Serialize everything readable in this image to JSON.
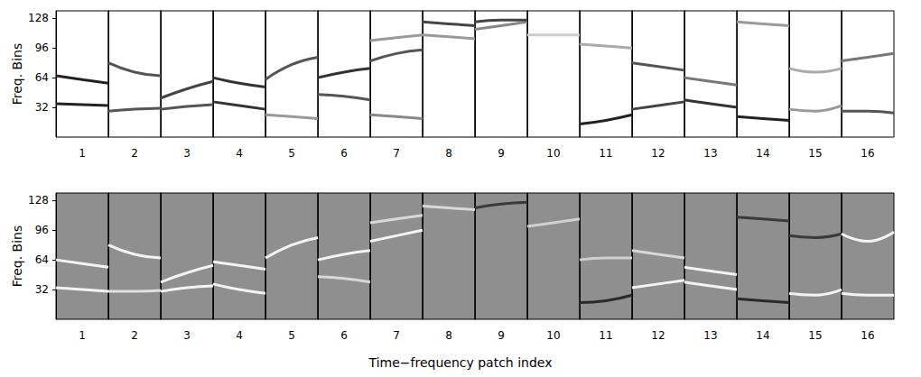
{
  "chart_data": {
    "type": "line",
    "x_label": "Time−frequency patch index",
    "y_label": "Freq. Bins",
    "categories": [
      "1",
      "2",
      "3",
      "4",
      "5",
      "6",
      "7",
      "8",
      "9",
      "10",
      "11",
      "12",
      "13",
      "14",
      "15",
      "16"
    ],
    "x": [
      0,
      0.5,
      1
    ],
    "xlim": [
      0,
      1
    ],
    "ylim": [
      0,
      136
    ],
    "yticks": [
      32,
      64,
      96,
      128
    ],
    "tick_labels": "y",
    "grid": false,
    "rows": [
      {
        "color": "#ffffff",
        "patches": [
          [
            {
              "color": "#222222",
              "values": [
                66,
                62,
                58
              ]
            },
            {
              "color": "#222222",
              "values": [
                36,
                35,
                34
              ]
            }
          ],
          [
            {
              "color": "#555555",
              "values": [
                80,
                70,
                66
              ]
            },
            {
              "color": "#555555",
              "values": [
                28,
                30,
                31
              ]
            }
          ],
          [
            {
              "color": "#444444",
              "values": [
                42,
                52,
                60
              ]
            },
            {
              "color": "#555555",
              "values": [
                30,
                33,
                35
              ]
            }
          ],
          [
            {
              "color": "#333333",
              "values": [
                64,
                58,
                54
              ]
            },
            {
              "color": "#333333",
              "values": [
                38,
                34,
                30
              ]
            }
          ],
          [
            {
              "color": "#555555",
              "values": [
                62,
                78,
                86
              ]
            },
            {
              "color": "#999999",
              "values": [
                24,
                22,
                20
              ]
            }
          ],
          [
            {
              "color": "#333333",
              "values": [
                64,
                70,
                74
              ]
            },
            {
              "color": "#555555",
              "values": [
                46,
                44,
                40
              ]
            }
          ],
          [
            {
              "color": "#555555",
              "values": [
                82,
                90,
                94
              ]
            },
            {
              "color": "#999999",
              "values": [
                104,
                107,
                110
              ]
            },
            {
              "color": "#888888",
              "values": [
                24,
                22,
                20
              ]
            }
          ],
          [
            {
              "color": "#444444",
              "values": [
                124,
                122,
                120
              ]
            },
            {
              "color": "#999999",
              "values": [
                110,
                108,
                106
              ]
            }
          ],
          [
            {
              "color": "#888888",
              "values": [
                116,
                120,
                124
              ]
            },
            {
              "color": "#444444",
              "values": [
                124,
                126,
                126
              ]
            }
          ],
          [
            {
              "color": "#cccccc",
              "values": [
                110,
                110,
                110
              ]
            }
          ],
          [
            {
              "color": "#aaaaaa",
              "values": [
                100,
                98,
                96
              ]
            },
            {
              "color": "#222222",
              "values": [
                14,
                18,
                24
              ]
            }
          ],
          [
            {
              "color": "#555555",
              "values": [
                80,
                76,
                72
              ]
            },
            {
              "color": "#444444",
              "values": [
                30,
                34,
                38
              ]
            }
          ],
          [
            {
              "color": "#777777",
              "values": [
                64,
                60,
                56
              ]
            },
            {
              "color": "#333333",
              "values": [
                40,
                36,
                32
              ]
            }
          ],
          [
            {
              "color": "#222222",
              "values": [
                22,
                20,
                18
              ]
            },
            {
              "color": "#999999",
              "values": [
                124,
                122,
                120
              ]
            }
          ],
          [
            {
              "color": "#aaaaaa",
              "values": [
                74,
                70,
                74
              ]
            },
            {
              "color": "#999999",
              "values": [
                30,
                28,
                34
              ]
            }
          ],
          [
            {
              "color": "#777777",
              "values": [
                82,
                86,
                90
              ]
            },
            {
              "color": "#555555",
              "values": [
                28,
                28,
                26
              ]
            }
          ]
        ]
      },
      {
        "color": "#8f8f8f",
        "patches": [
          [
            {
              "color": "#f4f4f4",
              "values": [
                64,
                60,
                56
              ]
            },
            {
              "color": "#f4f4f4",
              "values": [
                34,
                32,
                30
              ]
            }
          ],
          [
            {
              "color": "#f4f4f4",
              "values": [
                80,
                70,
                66
              ]
            },
            {
              "color": "#e0e0e0",
              "values": [
                30,
                30,
                31
              ]
            }
          ],
          [
            {
              "color": "#f4f4f4",
              "values": [
                40,
                50,
                58
              ]
            },
            {
              "color": "#f4f4f4",
              "values": [
                30,
                34,
                36
              ]
            }
          ],
          [
            {
              "color": "#f4f4f4",
              "values": [
                62,
                58,
                54
              ]
            },
            {
              "color": "#f4f4f4",
              "values": [
                38,
                32,
                28
              ]
            }
          ],
          [
            {
              "color": "#f4f4f4",
              "values": [
                66,
                80,
                88
              ]
            }
          ],
          [
            {
              "color": "#f4f4f4",
              "values": [
                64,
                70,
                74
              ]
            },
            {
              "color": "#d8d8d8",
              "values": [
                46,
                44,
                40
              ]
            }
          ],
          [
            {
              "color": "#f4f4f4",
              "values": [
                84,
                90,
                96
              ]
            },
            {
              "color": "#d8d8d8",
              "values": [
                104,
                108,
                112
              ]
            }
          ],
          [
            {
              "color": "#d8d8d8",
              "values": [
                122,
                120,
                118
              ]
            }
          ],
          [
            {
              "color": "#3a3a3a",
              "values": [
                120,
                124,
                126
              ]
            }
          ],
          [
            {
              "color": "#d0d0d0",
              "values": [
                100,
                104,
                108
              ]
            }
          ],
          [
            {
              "color": "#2a2a2a",
              "values": [
                18,
                20,
                26
              ]
            },
            {
              "color": "#d0d0d0",
              "values": [
                64,
                66,
                66
              ]
            }
          ],
          [
            {
              "color": "#f4f4f4",
              "values": [
                34,
                38,
                42
              ]
            },
            {
              "color": "#d8d8d8",
              "values": [
                74,
                70,
                66
              ]
            }
          ],
          [
            {
              "color": "#f4f4f4",
              "values": [
                56,
                52,
                48
              ]
            },
            {
              "color": "#f4f4f4",
              "values": [
                40,
                36,
                32
              ]
            }
          ],
          [
            {
              "color": "#2a2a2a",
              "values": [
                22,
                20,
                18
              ]
            },
            {
              "color": "#3a3a3a",
              "values": [
                110,
                108,
                106
              ]
            }
          ],
          [
            {
              "color": "#f4f4f4",
              "values": [
                28,
                26,
                32
              ]
            },
            {
              "color": "#3a3a3a",
              "values": [
                90,
                88,
                92
              ]
            }
          ],
          [
            {
              "color": "#f4f4f4",
              "values": [
                92,
                84,
                94
              ]
            },
            {
              "color": "#f4f4f4",
              "values": [
                28,
                26,
                26
              ]
            }
          ]
        ]
      }
    ]
  }
}
